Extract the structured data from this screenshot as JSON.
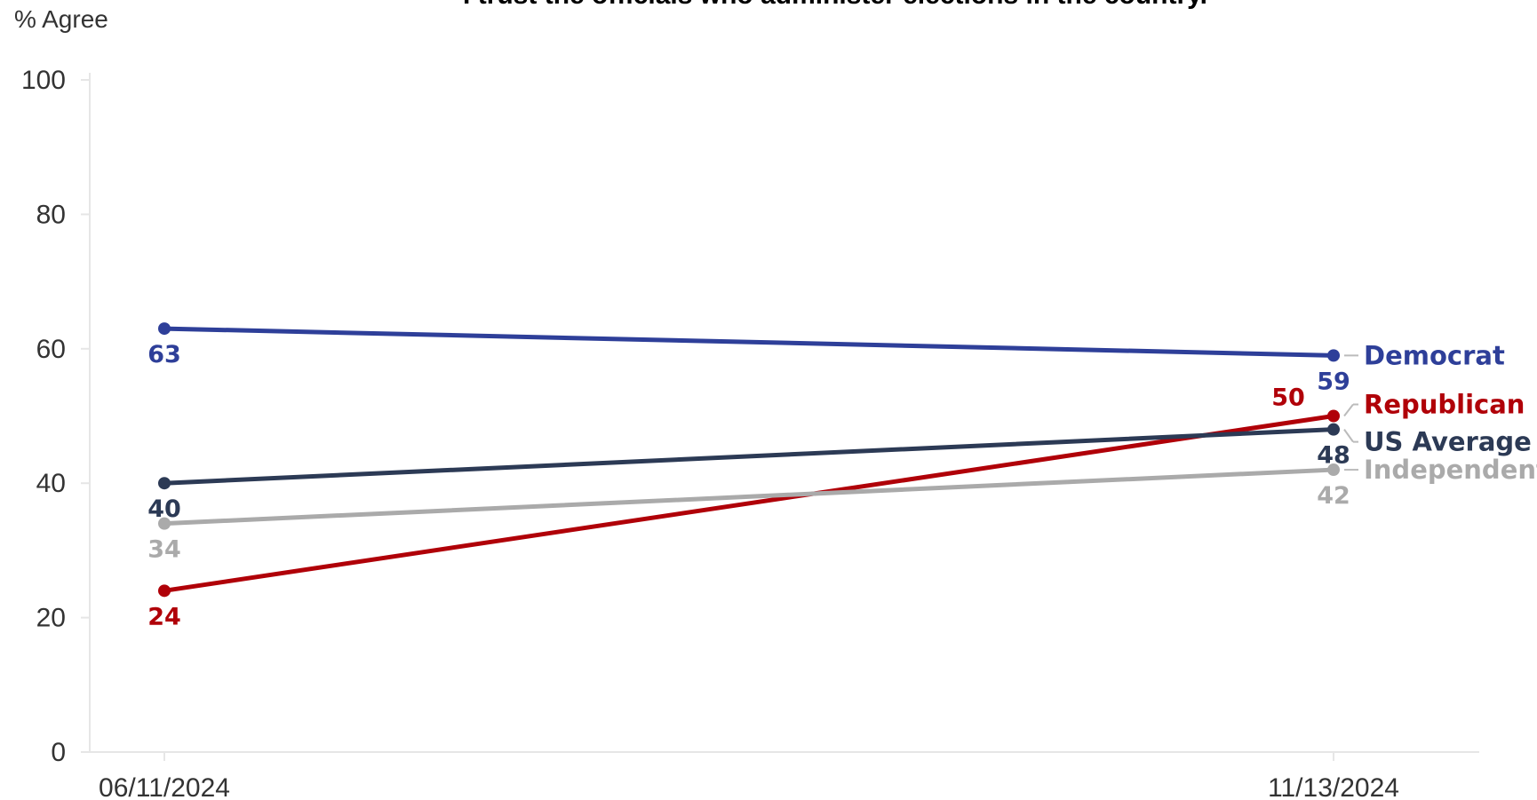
{
  "chart_data": {
    "type": "line",
    "title": "I trust the officials who administer elections in the country.",
    "ylabel": "% Agree",
    "xlabel": "",
    "x": [
      "06/11/2024",
      "11/13/2024"
    ],
    "ylim": [
      0,
      100
    ],
    "yticks": [
      "0",
      "20",
      "40",
      "60",
      "80",
      "100"
    ],
    "grid": false,
    "legend": "inline-right",
    "series": [
      {
        "name": "Democrat",
        "color": "#2e3f99",
        "values": [
          63,
          59
        ],
        "labels": [
          "63",
          "59"
        ]
      },
      {
        "name": "Republican",
        "color": "#b00008",
        "values": [
          24,
          50
        ],
        "labels": [
          "24",
          "50"
        ]
      },
      {
        "name": "US Average",
        "color": "#2c3a55",
        "values": [
          40,
          48
        ],
        "labels": [
          "40",
          "48"
        ]
      },
      {
        "name": "Independent",
        "color": "#aaaaaa",
        "values": [
          34,
          42
        ],
        "labels": [
          "34",
          "42"
        ]
      }
    ]
  }
}
